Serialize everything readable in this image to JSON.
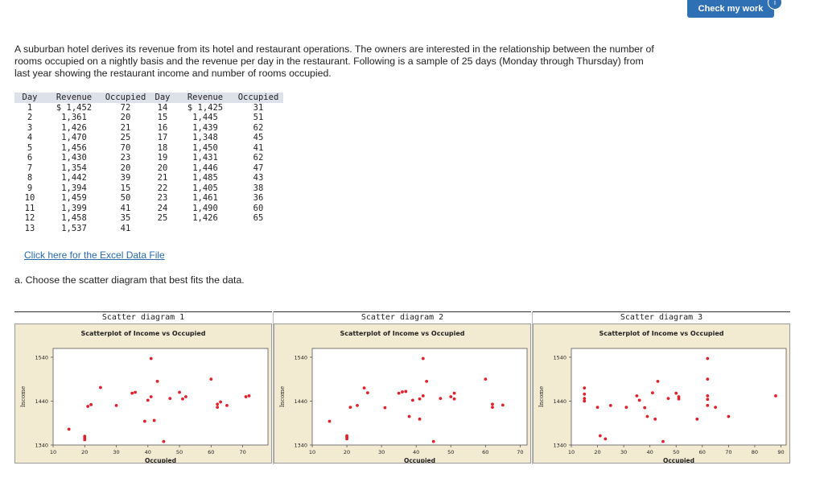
{
  "header": {
    "check_label": "Check my work",
    "badge": "i"
  },
  "intro_text": "A suburban hotel derives its revenue from its hotel and restaurant operations. The owners are interested in the relationship between the number of rooms occupied on a nightly basis and the revenue per day in the restaurant. Following is a sample of 25 days (Monday through Thursday) from last year showing the restaurant income and number of rooms occupied.",
  "table": {
    "headers": [
      "Day",
      "Revenue",
      "Occupied",
      "Day",
      "Revenue",
      "Occupied"
    ],
    "rows": [
      [
        "1",
        "$ 1,452",
        "72",
        "14",
        "$ 1,425",
        "31"
      ],
      [
        "2",
        "1,361",
        "20",
        "15",
        "1,445",
        "51"
      ],
      [
        "3",
        "1,426",
        "21",
        "16",
        "1,439",
        "62"
      ],
      [
        "4",
        "1,470",
        "25",
        "17",
        "1,348",
        "45"
      ],
      [
        "5",
        "1,456",
        "70",
        "18",
        "1,450",
        "41"
      ],
      [
        "6",
        "1,430",
        "23",
        "19",
        "1,431",
        "62"
      ],
      [
        "7",
        "1,354",
        "20",
        "20",
        "1,446",
        "47"
      ],
      [
        "8",
        "1,442",
        "39",
        "21",
        "1,485",
        "43"
      ],
      [
        "9",
        "1,394",
        "15",
        "22",
        "1,405",
        "38"
      ],
      [
        "10",
        "1,459",
        "50",
        "23",
        "1,461",
        "36"
      ],
      [
        "11",
        "1,399",
        "41",
        "24",
        "1,490",
        "60"
      ],
      [
        "12",
        "1,458",
        "35",
        "25",
        "1,426",
        "65"
      ],
      [
        "13",
        "1,537",
        "41",
        "",
        "",
        ""
      ]
    ]
  },
  "excel_link": "Click here for the Excel Data File",
  "question": "a. Choose the scatter diagram that best fits the data.",
  "colors": {
    "panel_bg": "#f3ead2",
    "point": "#e0202a",
    "button": "#2f6fb3"
  },
  "chart_data": [
    {
      "type": "scatter",
      "panel_title": "Scatter diagram 1",
      "title": "Scatterplot of Income vs Occupied",
      "xlabel": "Occupied",
      "ylabel": "Income",
      "xlim": [
        10,
        78
      ],
      "ylim": [
        1340,
        1560
      ],
      "xticks": [
        10,
        20,
        30,
        40,
        50,
        60,
        70
      ],
      "yticks": [
        1340,
        1440,
        1540
      ],
      "points": [
        [
          15,
          1376
        ],
        [
          20,
          1352
        ],
        [
          20,
          1356
        ],
        [
          20,
          1360
        ],
        [
          21,
          1428
        ],
        [
          22,
          1432
        ],
        [
          25,
          1471
        ],
        [
          30,
          1430
        ],
        [
          35,
          1458
        ],
        [
          36,
          1460
        ],
        [
          39,
          1394
        ],
        [
          40,
          1442
        ],
        [
          41,
          1450
        ],
        [
          41,
          1537
        ],
        [
          42,
          1396
        ],
        [
          43,
          1485
        ],
        [
          45,
          1348
        ],
        [
          47,
          1446
        ],
        [
          50,
          1460
        ],
        [
          51,
          1445
        ],
        [
          52,
          1450
        ],
        [
          60,
          1490
        ],
        [
          62,
          1426
        ],
        [
          62,
          1433
        ],
        [
          63,
          1438
        ],
        [
          65,
          1430
        ],
        [
          71,
          1450
        ],
        [
          72,
          1452
        ]
      ]
    },
    {
      "type": "scatter",
      "panel_title": "Scatter diagram 2",
      "title": "Scatterplot of Income vs Occupied",
      "xlabel": "Occupied",
      "ylabel": "Income",
      "xlim": [
        10,
        72
      ],
      "ylim": [
        1340,
        1560
      ],
      "xticks": [
        10,
        20,
        30,
        40,
        50,
        60,
        70
      ],
      "yticks": [
        1340,
        1440,
        1540
      ],
      "points": [
        [
          15,
          1394
        ],
        [
          20,
          1354
        ],
        [
          20,
          1358
        ],
        [
          20,
          1361
        ],
        [
          21,
          1426
        ],
        [
          23,
          1430
        ],
        [
          25,
          1470
        ],
        [
          26,
          1459
        ],
        [
          31,
          1425
        ],
        [
          35,
          1458
        ],
        [
          36,
          1461
        ],
        [
          37,
          1462
        ],
        [
          38,
          1405
        ],
        [
          39,
          1442
        ],
        [
          41,
          1399
        ],
        [
          41,
          1445
        ],
        [
          42,
          1452
        ],
        [
          42,
          1537
        ],
        [
          43,
          1485
        ],
        [
          45,
          1348
        ],
        [
          47,
          1446
        ],
        [
          50,
          1450
        ],
        [
          51,
          1445
        ],
        [
          51,
          1458
        ],
        [
          60,
          1490
        ],
        [
          62,
          1426
        ],
        [
          62,
          1433
        ],
        [
          65,
          1431
        ]
      ]
    },
    {
      "type": "scatter",
      "panel_title": "Scatter diagram 3",
      "title": "Scatterplot of Income vs Occupied",
      "xlabel": "Occupied",
      "ylabel": "Income",
      "xlim": [
        10,
        92
      ],
      "ylim": [
        1340,
        1560
      ],
      "xticks": [
        10,
        20,
        30,
        40,
        50,
        60,
        70,
        80,
        90
      ],
      "yticks": [
        1340,
        1440,
        1540
      ],
      "points": [
        [
          15,
          1470
        ],
        [
          15,
          1456
        ],
        [
          15,
          1446
        ],
        [
          15,
          1440
        ],
        [
          20,
          1426
        ],
        [
          21,
          1361
        ],
        [
          23,
          1354
        ],
        [
          25,
          1430
        ],
        [
          31,
          1426
        ],
        [
          35,
          1452
        ],
        [
          36,
          1442
        ],
        [
          38,
          1425
        ],
        [
          39,
          1405
        ],
        [
          41,
          1459
        ],
        [
          42,
          1399
        ],
        [
          43,
          1485
        ],
        [
          45,
          1348
        ],
        [
          47,
          1446
        ],
        [
          50,
          1458
        ],
        [
          51,
          1445
        ],
        [
          51,
          1450
        ],
        [
          58,
          1399
        ],
        [
          62,
          1537
        ],
        [
          62,
          1490
        ],
        [
          62,
          1452
        ],
        [
          62,
          1444
        ],
        [
          62,
          1430
        ],
        [
          65,
          1426
        ],
        [
          70,
          1405
        ],
        [
          88,
          1452
        ]
      ]
    }
  ]
}
